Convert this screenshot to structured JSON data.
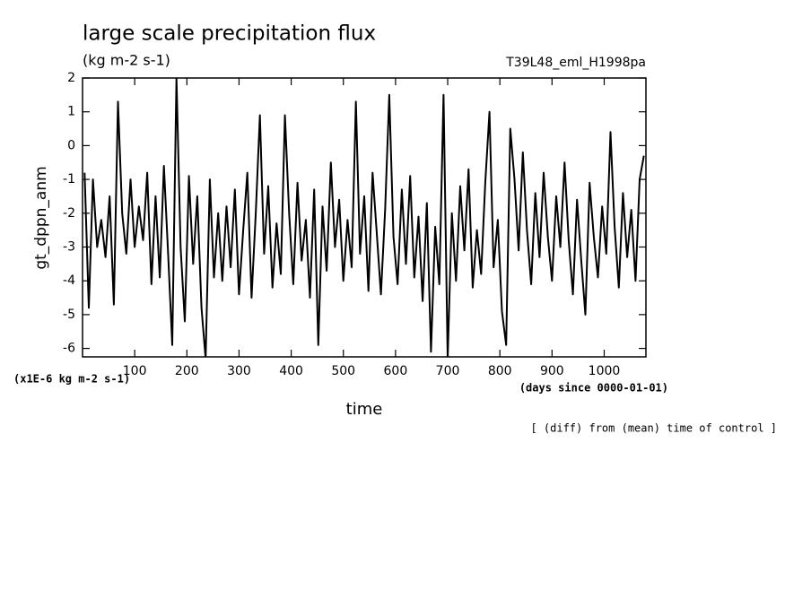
{
  "chart_data": {
    "type": "line",
    "title": "large scale precipitation flux",
    "subtitle": "(kg m-2 s-1)",
    "run_label": "T39L48_eml_H1998pa",
    "y_label": "gt_dppn_anm",
    "y_unit": "(x1E-6 kg m-2 s-1)",
    "x_label": "time",
    "x_unit": "(days since 0000-01-01)",
    "note": "[ (diff) from (mean) time of control ]",
    "xlim": [
      0,
      1080
    ],
    "ylim": [
      -6.25,
      2
    ],
    "xticks": [
      100,
      200,
      300,
      400,
      500,
      600,
      700,
      800,
      900,
      1000
    ],
    "yticks": [
      -6,
      -5,
      -4,
      -3,
      -2,
      -1,
      0,
      1,
      2
    ],
    "series": [
      {
        "name": "gt_dppn_anm",
        "color": "#000000",
        "x": [
          4,
          12,
          20,
          28,
          36,
          44,
          52,
          60,
          68,
          76,
          84,
          92,
          100,
          108,
          116,
          124,
          132,
          140,
          148,
          156,
          164,
          172,
          180,
          188,
          196,
          204,
          212,
          220,
          228,
          236,
          244,
          252,
          260,
          268,
          276,
          284,
          292,
          300,
          308,
          316,
          324,
          332,
          340,
          348,
          356,
          364,
          372,
          380,
          388,
          396,
          404,
          412,
          420,
          428,
          436,
          444,
          452,
          460,
          468,
          476,
          484,
          492,
          500,
          508,
          516,
          524,
          532,
          540,
          548,
          556,
          564,
          572,
          580,
          588,
          596,
          604,
          612,
          620,
          628,
          636,
          644,
          652,
          660,
          668,
          676,
          684,
          692,
          700,
          708,
          716,
          724,
          732,
          740,
          748,
          756,
          764,
          772,
          780,
          788,
          796,
          804,
          812,
          820,
          828,
          836,
          844,
          852,
          860,
          868,
          876,
          884,
          892,
          900,
          908,
          916,
          924,
          932,
          940,
          948,
          956,
          964,
          972,
          980,
          988,
          996,
          1004,
          1012,
          1020,
          1028,
          1036,
          1044,
          1052,
          1060,
          1068,
          1076
        ],
        "values": [
          -0.8,
          -4.8,
          -1.0,
          -3.0,
          -2.2,
          -3.3,
          -1.5,
          -4.7,
          1.3,
          -2.0,
          -3.2,
          -1.0,
          -3.0,
          -1.8,
          -2.8,
          -0.8,
          -4.1,
          -1.5,
          -3.9,
          -0.6,
          -3.2,
          -5.9,
          2.0,
          -3.0,
          -5.2,
          -0.9,
          -3.5,
          -1.5,
          -4.8,
          -6.3,
          -1.0,
          -3.9,
          -2.0,
          -4.0,
          -1.8,
          -3.6,
          -1.3,
          -4.4,
          -2.5,
          -0.8,
          -4.5,
          -2.0,
          0.9,
          -3.2,
          -1.2,
          -4.2,
          -2.3,
          -3.8,
          0.9,
          -2.0,
          -4.1,
          -1.1,
          -3.4,
          -2.2,
          -4.5,
          -1.3,
          -5.9,
          -1.8,
          -3.7,
          -0.5,
          -3.0,
          -1.6,
          -4.0,
          -2.2,
          -3.6,
          1.3,
          -3.2,
          -1.5,
          -4.3,
          -0.8,
          -2.6,
          -4.4,
          -1.9,
          1.5,
          -2.7,
          -4.1,
          -1.3,
          -3.5,
          -0.9,
          -3.9,
          -2.1,
          -4.6,
          -1.7,
          -6.1,
          -2.4,
          -4.1,
          1.5,
          -6.3,
          -2.0,
          -4.0,
          -1.2,
          -3.1,
          -0.7,
          -4.2,
          -2.5,
          -3.8,
          -1.1,
          1.0,
          -3.6,
          -2.2,
          -4.9,
          -5.9,
          0.5,
          -1.0,
          -3.1,
          -0.2,
          -2.5,
          -4.1,
          -1.4,
          -3.3,
          -0.8,
          -2.7,
          -4.0,
          -1.5,
          -3.0,
          -0.5,
          -2.8,
          -4.4,
          -1.6,
          -3.4,
          -5.0,
          -1.1,
          -2.7,
          -3.9,
          -1.8,
          -3.2,
          0.4,
          -2.4,
          -4.2,
          -1.4,
          -3.3,
          -1.9,
          -4.0,
          -1.0,
          -0.3
        ]
      }
    ]
  }
}
